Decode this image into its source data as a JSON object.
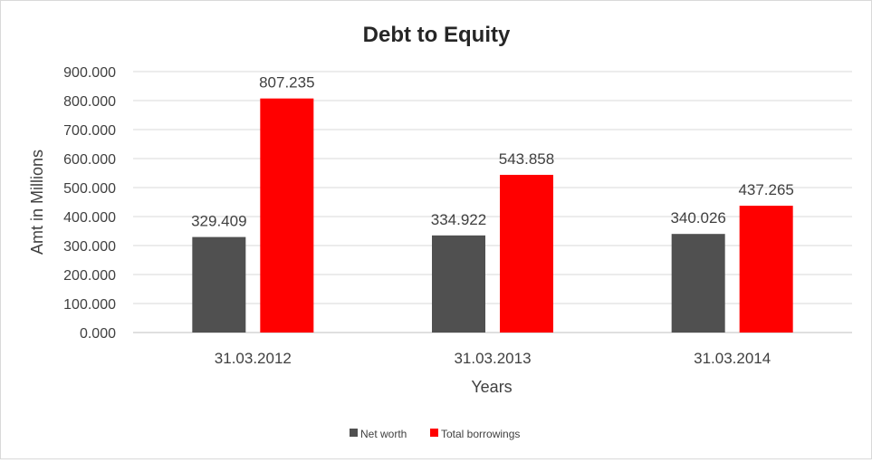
{
  "chart_data": {
    "type": "bar",
    "title": "Debt to Equity",
    "xlabel": "Years",
    "ylabel": "Amt in Millions",
    "categories": [
      "31.03.2012",
      "31.03.2013",
      "31.03.2014"
    ],
    "series": [
      {
        "name": "Net worth",
        "color": "#505050",
        "values": [
          329.409,
          334.922,
          340.026
        ]
      },
      {
        "name": "Total borrowings",
        "color": "#ff0000",
        "values": [
          807.235,
          543.858,
          437.265
        ]
      }
    ],
    "ylim": [
      0,
      900
    ],
    "yticks": [
      0,
      100,
      200,
      300,
      400,
      500,
      600,
      700,
      800,
      900
    ],
    "ytick_labels": [
      "0.000",
      "100.000",
      "200.000",
      "300.000",
      "400.000",
      "500.000",
      "600.000",
      "700.000",
      "800.000",
      "900.000"
    ],
    "value_labels": [
      [
        "329.409",
        "334.922",
        "340.026"
      ],
      [
        "807.235",
        "543.858",
        "437.265"
      ]
    ],
    "grid": true,
    "legend_position": "bottom"
  }
}
